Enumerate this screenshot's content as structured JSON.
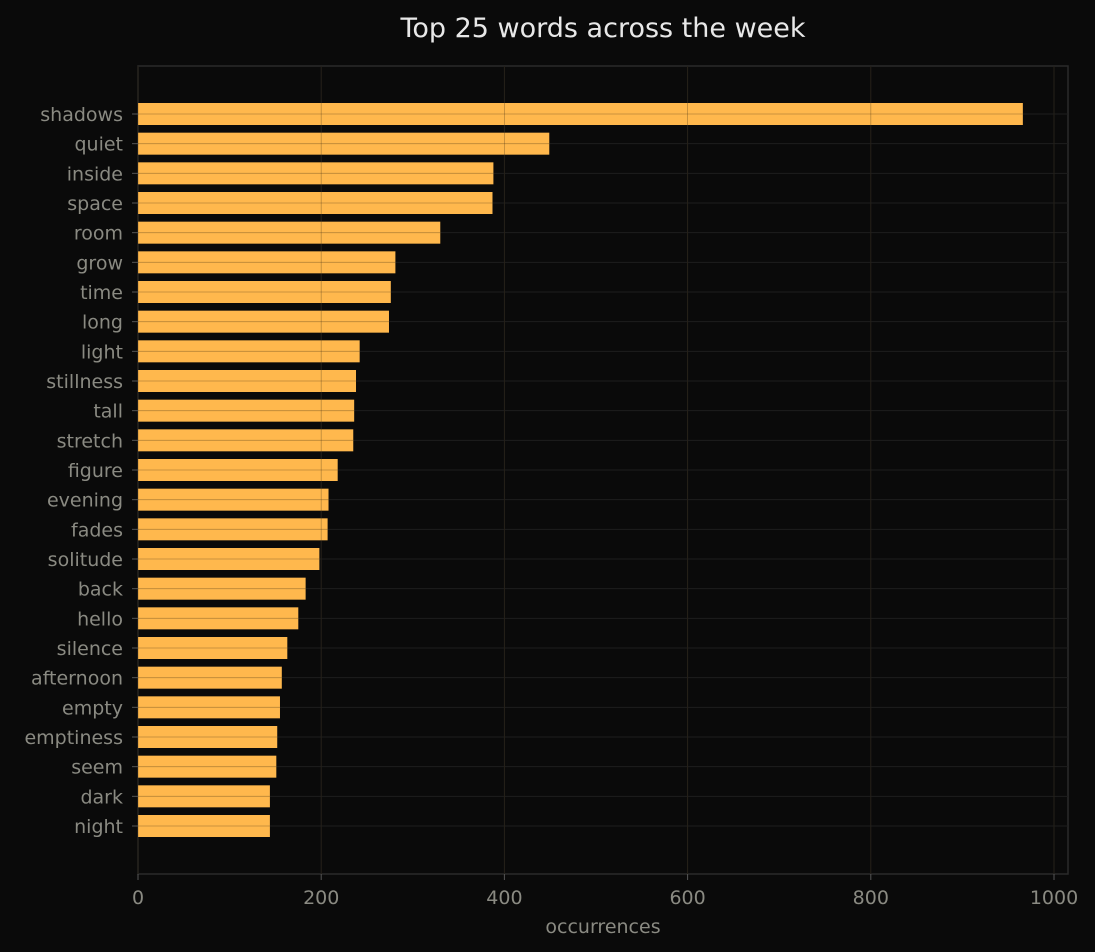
{
  "chart_data": {
    "type": "bar",
    "orientation": "horizontal",
    "title": "Top 25 words across the week",
    "xlabel": "occurrences",
    "ylabel": "",
    "xlim": [
      0,
      1015
    ],
    "xticks": [
      0,
      200,
      400,
      600,
      800,
      1000
    ],
    "grid": true,
    "bar_color": "#ffb84d",
    "background": "#0a0a0a",
    "categories": [
      "shadows",
      "quiet",
      "inside",
      "space",
      "room",
      "grow",
      "time",
      "long",
      "light",
      "stillness",
      "tall",
      "stretch",
      "figure",
      "evening",
      "fades",
      "solitude",
      "back",
      "hello",
      "silence",
      "afternoon",
      "empty",
      "emptiness",
      "seem",
      "dark",
      "night"
    ],
    "values": [
      966,
      449,
      388,
      387,
      330,
      281,
      276,
      274,
      242,
      238,
      236,
      235,
      218,
      208,
      207,
      198,
      183,
      175,
      163,
      157,
      155,
      152,
      151,
      144,
      144
    ]
  }
}
